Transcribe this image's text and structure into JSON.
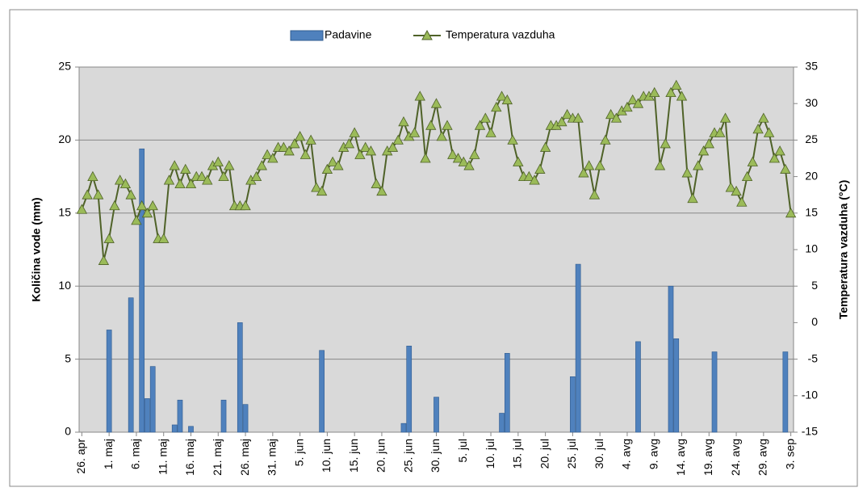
{
  "chart_data": {
    "type": "bar-line",
    "y_label": "Količina vode (mm)",
    "y2_label": "Temperatura vazduha  (°C)",
    "categories": [
      "26. apr",
      null,
      null,
      null,
      null,
      "1. maj",
      null,
      null,
      null,
      null,
      "6. maj",
      null,
      null,
      null,
      null,
      "11. maj",
      null,
      null,
      null,
      null,
      "16. maj",
      null,
      null,
      null,
      null,
      "21. maj",
      null,
      null,
      null,
      null,
      "26. maj",
      null,
      null,
      null,
      null,
      "31. maj",
      null,
      null,
      null,
      null,
      "5. jun",
      null,
      null,
      null,
      null,
      "10. jun",
      null,
      null,
      null,
      null,
      "15. jun",
      null,
      null,
      null,
      null,
      "20. jun",
      null,
      null,
      null,
      null,
      "25. jun",
      null,
      null,
      null,
      null,
      "30. jun",
      null,
      null,
      null,
      null,
      "5. jul",
      null,
      null,
      null,
      null,
      "10. jul",
      null,
      null,
      null,
      null,
      "15. jul",
      null,
      null,
      null,
      null,
      "20. jul",
      null,
      null,
      null,
      null,
      "25. jul",
      null,
      null,
      null,
      null,
      "30. jul",
      null,
      null,
      null,
      null,
      "4. avg",
      null,
      null,
      null,
      null,
      "9. avg",
      null,
      null,
      null,
      null,
      "14. avg",
      null,
      null,
      null,
      null,
      "19. avg",
      null,
      null,
      null,
      null,
      "24. avg",
      null,
      null,
      null,
      null,
      "29. avg",
      null,
      null,
      null,
      null,
      "3. sep"
    ],
    "series": [
      {
        "name": "Padavine",
        "type": "bar",
        "color": "#4f81bd",
        "values": [
          0,
          0,
          0,
          0,
          0,
          7.0,
          0,
          0,
          0,
          9.2,
          0,
          19.4,
          2.3,
          4.5,
          0,
          0,
          0,
          0.5,
          2.2,
          0,
          0.4,
          0,
          0,
          0,
          0,
          0,
          2.2,
          0,
          0,
          7.5,
          1.9,
          0,
          0,
          0,
          0,
          0,
          0,
          0,
          0,
          0,
          0,
          0,
          0,
          0,
          5.6,
          0,
          0,
          0,
          0,
          0,
          0,
          0,
          0,
          0,
          0,
          0,
          0,
          0,
          0,
          0.6,
          5.9,
          0,
          0,
          0,
          0,
          2.4,
          0,
          0,
          0,
          0,
          0,
          0,
          0,
          0,
          0,
          0,
          0,
          1.3,
          5.4,
          0,
          0,
          0,
          0,
          0,
          0,
          0,
          0,
          0,
          0,
          0,
          3.8,
          11.5,
          0,
          0,
          0,
          0,
          0,
          0,
          0,
          0,
          0,
          0,
          6.2,
          0,
          0,
          0,
          0,
          0,
          10.0,
          6.4,
          0,
          0,
          0,
          0,
          0,
          0,
          5.5,
          0,
          0,
          0,
          0,
          0,
          0,
          0,
          0,
          0,
          0,
          0,
          0,
          5.5,
          0
        ]
      },
      {
        "name": "Temperatura vazduha",
        "type": "line",
        "axis": "y2",
        "color": "#4f6228",
        "marker_color": "#9bbb59",
        "values": [
          15.5,
          17.5,
          20,
          17.5,
          8.5,
          11.5,
          16,
          19.5,
          19,
          17.5,
          14,
          16,
          15,
          16,
          11.5,
          11.5,
          19.5,
          21.5,
          19,
          21,
          19,
          20,
          20,
          19.5,
          21.5,
          22,
          20,
          21.5,
          16,
          16,
          16,
          19.5,
          20,
          21.5,
          23,
          22.5,
          24,
          24,
          23.5,
          24.5,
          25.5,
          23,
          25,
          18.5,
          18,
          21,
          22,
          21.5,
          24,
          24.5,
          26,
          23,
          24,
          23.5,
          19,
          18,
          23.5,
          24,
          25,
          27.5,
          25.5,
          26,
          31,
          22.5,
          27,
          30,
          25.5,
          27,
          23,
          22.5,
          22,
          21.5,
          23,
          27,
          28,
          26,
          29.5,
          31,
          30.5,
          25,
          22,
          20,
          20,
          19.5,
          21,
          24,
          27,
          27,
          27.5,
          28.5,
          28,
          28,
          20.5,
          21.5,
          17.5,
          21.5,
          25,
          28.5,
          28,
          29,
          29.5,
          30.5,
          30,
          31,
          31,
          31.5,
          21.5,
          24.5,
          31.5,
          32.5,
          31,
          20.5,
          17,
          21.5,
          23.5,
          24.5,
          26,
          26,
          28,
          18.5,
          18,
          16.5,
          20,
          22,
          26.5,
          28,
          26,
          22.5,
          23.5,
          21,
          15
        ]
      }
    ],
    "ylim": [
      0,
      25
    ],
    "yticks": [
      0,
      5,
      10,
      15,
      20,
      25
    ],
    "y2lim": [
      -15,
      35
    ],
    "y2ticks": [
      -15,
      -10,
      -5,
      0,
      5,
      10,
      15,
      20,
      25,
      30,
      35
    ],
    "grid": true,
    "legend": "top",
    "plot_background": "#d9d9d9"
  }
}
